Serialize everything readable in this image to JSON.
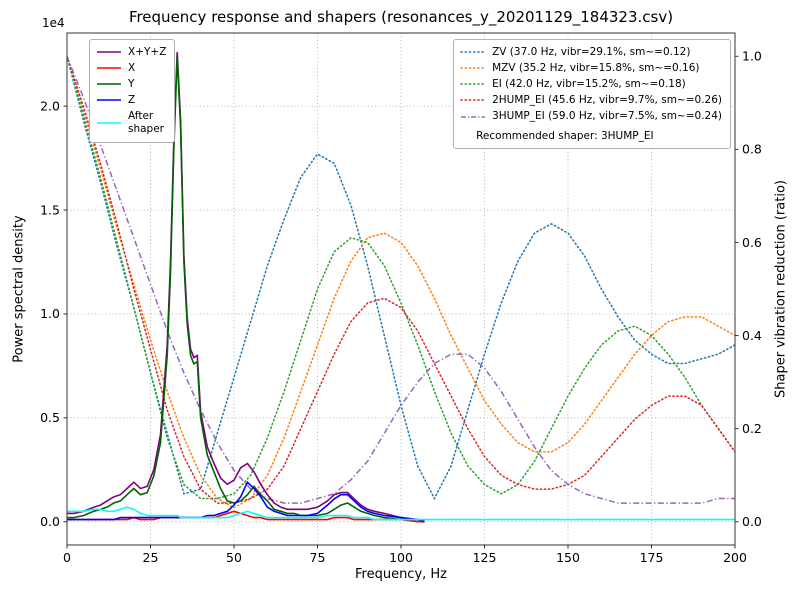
{
  "chart_data": {
    "type": "line",
    "title": "Frequency response and shapers (resonances_y_20201129_184323.csv)",
    "xlabel": "Frequency, Hz",
    "ylabel_left": "Power spectral density",
    "ylabel_right": "Shaper vibration reduction (ratio)",
    "offset_text": "1e4",
    "legend_note": "Recommended shaper: 3HUMP_EI",
    "xlim": [
      0,
      200
    ],
    "ylim_left": [
      -0.112,
      2.352
    ],
    "ylim_right": [
      -0.05,
      1.05
    ],
    "xticks": [
      0,
      25,
      50,
      75,
      100,
      125,
      150,
      175,
      200
    ],
    "yticks_left": [
      0.0,
      0.5,
      1.0,
      1.5,
      2.0
    ],
    "yticks_right": [
      0.0,
      0.2,
      0.4,
      0.6,
      0.8,
      1.0
    ],
    "grid": true,
    "colors": {
      "background": "#ffffff",
      "grid": "#b0b0b0",
      "axis": "#333333"
    },
    "x_psd": [
      0,
      2,
      5,
      8,
      10,
      12,
      14,
      16,
      18,
      20,
      22,
      24,
      26,
      28,
      30,
      31,
      32,
      33,
      34,
      35,
      36,
      37,
      38,
      39,
      40,
      42,
      44,
      46,
      48,
      50,
      52,
      54,
      56,
      58,
      60,
      62,
      64,
      66,
      68,
      70,
      72,
      75,
      78,
      80,
      82,
      84,
      86,
      88,
      90,
      92,
      95,
      100,
      105,
      107
    ],
    "x_shaper": [
      0,
      5,
      10,
      15,
      20,
      25,
      30,
      35,
      40,
      45,
      50,
      55,
      60,
      65,
      70,
      75,
      80,
      85,
      90,
      95,
      100,
      105,
      110,
      115,
      120,
      125,
      130,
      135,
      140,
      145,
      150,
      155,
      160,
      165,
      170,
      175,
      180,
      185,
      190,
      195,
      200
    ],
    "psd_series": [
      {
        "name": "X+Y+Z",
        "color": "#800080",
        "style": "solid",
        "y": [
          0.04,
          0.04,
          0.05,
          0.07,
          0.08,
          0.1,
          0.12,
          0.13,
          0.16,
          0.19,
          0.16,
          0.17,
          0.25,
          0.42,
          0.85,
          1.25,
          1.85,
          2.26,
          1.93,
          1.28,
          0.98,
          0.83,
          0.79,
          0.8,
          0.53,
          0.36,
          0.28,
          0.21,
          0.18,
          0.2,
          0.26,
          0.28,
          0.24,
          0.18,
          0.13,
          0.09,
          0.07,
          0.06,
          0.06,
          0.06,
          0.06,
          0.07,
          0.1,
          0.13,
          0.14,
          0.14,
          0.11,
          0.08,
          0.06,
          0.05,
          0.04,
          0.02,
          0.01,
          0.0
        ]
      },
      {
        "name": "X",
        "color": "#ff0000",
        "style": "solid",
        "y": [
          0.01,
          0.01,
          0.01,
          0.01,
          0.01,
          0.01,
          0.01,
          0.01,
          0.01,
          0.02,
          0.01,
          0.01,
          0.01,
          0.02,
          0.02,
          0.02,
          0.02,
          0.02,
          0.02,
          0.02,
          0.02,
          0.02,
          0.02,
          0.02,
          0.02,
          0.02,
          0.02,
          0.03,
          0.04,
          0.05,
          0.04,
          0.03,
          0.02,
          0.02,
          0.01,
          0.01,
          0.01,
          0.01,
          0.01,
          0.01,
          0.01,
          0.01,
          0.01,
          0.02,
          0.02,
          0.02,
          0.01,
          0.01,
          0.01,
          0.01,
          0.01,
          0.01,
          0.0,
          0.0
        ]
      },
      {
        "name": "Y",
        "color": "#006400",
        "style": "solid",
        "y": [
          0.02,
          0.02,
          0.03,
          0.05,
          0.06,
          0.07,
          0.09,
          0.1,
          0.13,
          0.16,
          0.13,
          0.14,
          0.22,
          0.38,
          0.8,
          1.2,
          1.8,
          2.24,
          1.9,
          1.25,
          0.95,
          0.8,
          0.76,
          0.77,
          0.5,
          0.32,
          0.24,
          0.16,
          0.1,
          0.09,
          0.1,
          0.13,
          0.17,
          0.13,
          0.1,
          0.06,
          0.05,
          0.04,
          0.04,
          0.03,
          0.03,
          0.03,
          0.04,
          0.06,
          0.08,
          0.09,
          0.07,
          0.05,
          0.04,
          0.03,
          0.02,
          0.01,
          0.01,
          0.0
        ]
      },
      {
        "name": "Z",
        "color": "#0000ff",
        "style": "solid",
        "y": [
          0.01,
          0.01,
          0.01,
          0.01,
          0.01,
          0.01,
          0.01,
          0.02,
          0.02,
          0.02,
          0.02,
          0.02,
          0.02,
          0.02,
          0.02,
          0.02,
          0.02,
          0.02,
          0.02,
          0.02,
          0.02,
          0.02,
          0.02,
          0.02,
          0.02,
          0.03,
          0.03,
          0.04,
          0.05,
          0.08,
          0.12,
          0.19,
          0.16,
          0.12,
          0.07,
          0.05,
          0.04,
          0.03,
          0.03,
          0.03,
          0.03,
          0.04,
          0.08,
          0.11,
          0.13,
          0.13,
          0.1,
          0.07,
          0.05,
          0.04,
          0.03,
          0.02,
          0.01,
          0.0
        ]
      },
      {
        "name": "After\nshaper",
        "color": "#00ffff",
        "style": "solid",
        "x": [
          0,
          2,
          5,
          8,
          10,
          12,
          14,
          16,
          18,
          20,
          22,
          24,
          26,
          28,
          30,
          31,
          32,
          33,
          34,
          35,
          36,
          37,
          38,
          39,
          40,
          42,
          44,
          46,
          48,
          50,
          52,
          54,
          56,
          58,
          60,
          62,
          64,
          66,
          68,
          70,
          72,
          75,
          78,
          80,
          82,
          84,
          86,
          88,
          90,
          92,
          95,
          100,
          105,
          107,
          120,
          140,
          160,
          180,
          200
        ],
        "y": [
          0.05,
          0.05,
          0.05,
          0.06,
          0.06,
          0.05,
          0.05,
          0.06,
          0.07,
          0.06,
          0.04,
          0.03,
          0.03,
          0.03,
          0.03,
          0.03,
          0.03,
          0.03,
          0.02,
          0.02,
          0.02,
          0.02,
          0.02,
          0.02,
          0.02,
          0.02,
          0.02,
          0.02,
          0.02,
          0.03,
          0.04,
          0.05,
          0.04,
          0.03,
          0.02,
          0.02,
          0.02,
          0.02,
          0.02,
          0.02,
          0.02,
          0.02,
          0.03,
          0.03,
          0.03,
          0.03,
          0.02,
          0.02,
          0.02,
          0.01,
          0.01,
          0.01,
          0.01,
          0.01,
          0.01,
          0.01,
          0.01,
          0.01,
          0.01
        ]
      }
    ],
    "shaper_series": [
      {
        "name": "ZV",
        "label": "ZV (37.0 Hz, vibr=29.1%, sm~=0.12)",
        "color": "#1f77b4",
        "style": "dotted",
        "y": [
          1.0,
          0.86,
          0.73,
          0.59,
          0.46,
          0.32,
          0.19,
          0.06,
          0.07,
          0.19,
          0.31,
          0.43,
          0.55,
          0.65,
          0.74,
          0.79,
          0.77,
          0.68,
          0.55,
          0.4,
          0.25,
          0.12,
          0.05,
          0.12,
          0.24,
          0.36,
          0.47,
          0.56,
          0.62,
          0.64,
          0.62,
          0.57,
          0.5,
          0.44,
          0.39,
          0.36,
          0.34,
          0.34,
          0.35,
          0.36,
          0.38
        ]
      },
      {
        "name": "MZV",
        "label": "MZV (35.2 Hz, vibr=15.8%, sm~=0.16)",
        "color": "#ff7f0e",
        "style": "dotted",
        "y": [
          1.0,
          0.88,
          0.76,
          0.63,
          0.51,
          0.39,
          0.28,
          0.18,
          0.1,
          0.05,
          0.03,
          0.05,
          0.1,
          0.18,
          0.28,
          0.38,
          0.48,
          0.56,
          0.61,
          0.62,
          0.6,
          0.55,
          0.48,
          0.4,
          0.33,
          0.26,
          0.21,
          0.17,
          0.15,
          0.15,
          0.17,
          0.21,
          0.26,
          0.31,
          0.36,
          0.4,
          0.43,
          0.44,
          0.44,
          0.42,
          0.4
        ]
      },
      {
        "name": "EI",
        "label": "EI (42.0 Hz, vibr=15.2%, sm~=0.18)",
        "color": "#2ca02c",
        "style": "dotted",
        "y": [
          1.0,
          0.87,
          0.74,
          0.6,
          0.46,
          0.32,
          0.18,
          0.08,
          0.05,
          0.05,
          0.06,
          0.1,
          0.18,
          0.28,
          0.39,
          0.5,
          0.58,
          0.61,
          0.6,
          0.55,
          0.47,
          0.38,
          0.28,
          0.19,
          0.12,
          0.08,
          0.06,
          0.08,
          0.13,
          0.2,
          0.27,
          0.33,
          0.38,
          0.41,
          0.42,
          0.4,
          0.36,
          0.31,
          0.25,
          0.2,
          0.15
        ]
      },
      {
        "name": "2HUMP_EI",
        "label": "2HUMP_EI (45.6 Hz, vibr=9.7%, sm~=0.26)",
        "color": "#d62728",
        "style": "dotted",
        "y": [
          1.0,
          0.89,
          0.77,
          0.64,
          0.5,
          0.37,
          0.24,
          0.14,
          0.07,
          0.04,
          0.04,
          0.05,
          0.07,
          0.12,
          0.2,
          0.28,
          0.36,
          0.43,
          0.47,
          0.48,
          0.46,
          0.41,
          0.34,
          0.27,
          0.2,
          0.14,
          0.1,
          0.08,
          0.07,
          0.07,
          0.08,
          0.1,
          0.14,
          0.18,
          0.22,
          0.25,
          0.27,
          0.27,
          0.25,
          0.2,
          0.15
        ]
      },
      {
        "name": "3HUMP_EI",
        "label": "3HUMP_EI (59.0 Hz, vibr=7.5%, sm~=0.24)",
        "color": "#9467bd",
        "style": "dashdot",
        "y": [
          1.0,
          0.91,
          0.81,
          0.71,
          0.61,
          0.51,
          0.41,
          0.32,
          0.24,
          0.17,
          0.11,
          0.07,
          0.05,
          0.04,
          0.04,
          0.05,
          0.06,
          0.09,
          0.13,
          0.19,
          0.25,
          0.3,
          0.34,
          0.36,
          0.36,
          0.33,
          0.28,
          0.22,
          0.16,
          0.11,
          0.08,
          0.06,
          0.05,
          0.04,
          0.04,
          0.04,
          0.04,
          0.04,
          0.04,
          0.05,
          0.05
        ]
      }
    ]
  }
}
